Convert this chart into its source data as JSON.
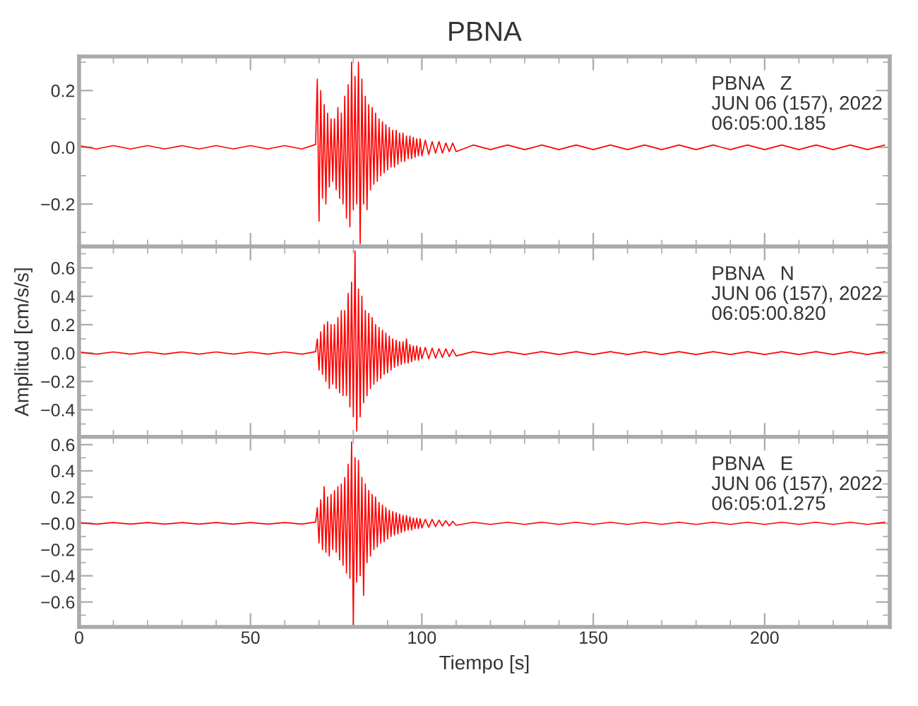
{
  "chart_data": [
    {
      "type": "line",
      "title": "PBNA",
      "annotations": [
        "PBNA   Z",
        "JUN 06 (157), 2022",
        "06:05:00.185"
      ],
      "tick_labels": "y",
      "color": "#ff0000",
      "xlim": [
        0,
        236.5
      ],
      "ylim": [
        -0.35,
        0.32
      ],
      "xticks": [
        0,
        {
          "value": 10,
          "label": null
        },
        {
          "value": 20,
          "label": null
        },
        {
          "value": 30,
          "label": null
        },
        {
          "value": 40,
          "label": null
        },
        50,
        {
          "value": 60,
          "label": null
        },
        {
          "value": 70,
          "label": null
        },
        {
          "value": 80,
          "label": null
        },
        {
          "value": 90,
          "label": null
        },
        100,
        {
          "value": 110,
          "label": null
        },
        {
          "value": 120,
          "label": null
        },
        {
          "value": 130,
          "label": null
        },
        {
          "value": 140,
          "label": null
        },
        150,
        {
          "value": 160,
          "label": null
        },
        {
          "value": 170,
          "label": null
        },
        {
          "value": 180,
          "label": null
        },
        {
          "value": 190,
          "label": null
        },
        200,
        {
          "value": 210,
          "label": null
        },
        {
          "value": 220,
          "label": null
        },
        {
          "value": 230,
          "label": null
        }
      ],
      "yticks": [
        {
          "value": -0.3,
          "label": null
        },
        {
          "value": -0.2,
          "label": "−0.2"
        },
        {
          "value": -0.1,
          "label": null
        },
        {
          "value": 0.0,
          "label": "0.0"
        },
        {
          "value": 0.1,
          "label": null
        },
        {
          "value": 0.2,
          "label": "0.2"
        },
        {
          "value": 0.3,
          "label": null
        }
      ],
      "x": [
        0,
        5,
        10,
        15,
        20,
        25,
        30,
        35,
        40,
        45,
        50,
        55,
        60,
        65,
        69,
        69.5,
        70,
        70.5,
        71,
        71.5,
        72,
        72.5,
        73,
        73.5,
        74,
        74.5,
        75,
        75.5,
        76,
        76.5,
        77,
        77.5,
        78,
        78.5,
        79,
        79.5,
        80,
        80.5,
        81,
        81.5,
        82,
        82.5,
        83,
        83.5,
        84,
        84.5,
        85,
        85.5,
        86,
        86.5,
        87,
        87.5,
        88,
        88.5,
        89,
        89.5,
        90,
        90.5,
        91,
        91.5,
        92,
        92.5,
        93,
        93.5,
        94,
        94.5,
        95,
        95.5,
        96,
        96.5,
        97,
        97.5,
        98,
        98.5,
        99,
        99.5,
        100,
        101,
        102,
        103,
        104,
        105,
        106,
        107,
        108,
        109,
        110,
        115,
        120,
        125,
        130,
        135,
        140,
        145,
        150,
        155,
        160,
        165,
        170,
        175,
        180,
        185,
        190,
        195,
        200,
        205,
        210,
        215,
        220,
        225,
        230,
        235
      ],
      "values": [
        0.006,
        -0.006,
        0.006,
        -0.006,
        0.006,
        -0.006,
        0.006,
        -0.006,
        0.006,
        -0.006,
        0.006,
        -0.006,
        0.006,
        -0.006,
        0.01,
        0.24,
        -0.26,
        0.2,
        -0.18,
        0.15,
        -0.2,
        0.12,
        -0.14,
        0.1,
        -0.12,
        0.1,
        -0.15,
        0.14,
        -0.18,
        0.12,
        -0.2,
        0.18,
        -0.25,
        0.22,
        -0.28,
        0.3,
        -0.22,
        0.25,
        -0.2,
        0.3,
        -0.34,
        0.24,
        -0.2,
        0.18,
        -0.22,
        0.15,
        -0.15,
        0.14,
        -0.13,
        0.12,
        -0.12,
        0.1,
        -0.1,
        0.09,
        -0.09,
        0.08,
        -0.08,
        0.07,
        -0.07,
        0.06,
        -0.07,
        0.06,
        -0.06,
        0.05,
        -0.05,
        0.05,
        -0.05,
        0.04,
        -0.04,
        0.04,
        -0.04,
        0.035,
        -0.035,
        0.03,
        -0.03,
        0.03,
        -0.03,
        0.025,
        -0.025,
        0.02,
        -0.02,
        0.02,
        -0.02,
        0.015,
        -0.015,
        0.015,
        -0.015,
        0.008,
        -0.008,
        0.008,
        -0.008,
        0.008,
        -0.008,
        0.008,
        -0.008,
        0.008,
        -0.008,
        0.008,
        -0.008,
        0.008,
        -0.008,
        0.008,
        -0.008,
        0.008,
        -0.008,
        0.008,
        -0.008,
        0.008,
        -0.008,
        0.008,
        -0.008,
        0.008
      ]
    },
    {
      "type": "line",
      "ylabel": "Amplitud [cm/s/s]",
      "annotations": [
        "PBNA   N",
        "JUN 06 (157), 2022",
        "06:05:00.820"
      ],
      "tick_labels": "y",
      "color": "#ff0000",
      "xlim": [
        0,
        236.5
      ],
      "ylim": [
        -0.59,
        0.75
      ],
      "xticks": [
        0,
        {
          "value": 10,
          "label": null
        },
        {
          "value": 20,
          "label": null
        },
        {
          "value": 30,
          "label": null
        },
        {
          "value": 40,
          "label": null
        },
        50,
        {
          "value": 60,
          "label": null
        },
        {
          "value": 70,
          "label": null
        },
        {
          "value": 80,
          "label": null
        },
        {
          "value": 90,
          "label": null
        },
        100,
        {
          "value": 110,
          "label": null
        },
        {
          "value": 120,
          "label": null
        },
        {
          "value": 130,
          "label": null
        },
        {
          "value": 140,
          "label": null
        },
        150,
        {
          "value": 160,
          "label": null
        },
        {
          "value": 170,
          "label": null
        },
        {
          "value": 180,
          "label": null
        },
        {
          "value": 190,
          "label": null
        },
        200,
        {
          "value": 210,
          "label": null
        },
        {
          "value": 220,
          "label": null
        },
        {
          "value": 230,
          "label": null
        }
      ],
      "yticks": [
        {
          "value": -0.5,
          "label": null
        },
        {
          "value": -0.4,
          "label": "−0.4"
        },
        {
          "value": -0.3,
          "label": null
        },
        {
          "value": -0.2,
          "label": "−0.2"
        },
        {
          "value": -0.1,
          "label": null
        },
        {
          "value": 0.0,
          "label": "0.0"
        },
        {
          "value": 0.1,
          "label": null
        },
        {
          "value": 0.2,
          "label": "0.2"
        },
        {
          "value": 0.3,
          "label": null
        },
        {
          "value": 0.4,
          "label": "0.4"
        },
        {
          "value": 0.5,
          "label": null
        },
        {
          "value": 0.6,
          "label": "0.6"
        },
        {
          "value": 0.7,
          "label": null
        }
      ],
      "x": [
        0,
        5,
        10,
        15,
        20,
        25,
        30,
        35,
        40,
        45,
        50,
        55,
        60,
        65,
        69,
        69.5,
        70,
        70.5,
        71,
        71.5,
        72,
        72.5,
        73,
        73.5,
        74,
        74.5,
        75,
        75.5,
        76,
        76.5,
        77,
        77.5,
        78,
        78.5,
        79,
        79.5,
        80,
        80.5,
        81,
        81.5,
        82,
        82.5,
        83,
        83.5,
        84,
        84.5,
        85,
        85.5,
        86,
        86.5,
        87,
        87.5,
        88,
        88.5,
        89,
        89.5,
        90,
        90.5,
        91,
        91.5,
        92,
        92.5,
        93,
        93.5,
        94,
        94.5,
        95,
        95.5,
        96,
        96.5,
        97,
        97.5,
        98,
        98.5,
        99,
        99.5,
        100,
        101,
        102,
        103,
        104,
        105,
        106,
        107,
        108,
        109,
        110,
        115,
        120,
        125,
        130,
        135,
        140,
        145,
        150,
        155,
        160,
        165,
        170,
        175,
        180,
        185,
        190,
        195,
        200,
        205,
        210,
        215,
        220,
        225,
        230,
        235
      ],
      "values": [
        0.008,
        -0.008,
        0.008,
        -0.008,
        0.008,
        -0.008,
        0.008,
        -0.008,
        0.008,
        -0.008,
        0.008,
        -0.008,
        0.008,
        -0.008,
        0.01,
        0.1,
        -0.12,
        0.15,
        -0.15,
        0.2,
        -0.2,
        0.22,
        -0.25,
        0.2,
        -0.22,
        0.2,
        -0.25,
        0.25,
        -0.28,
        0.3,
        -0.3,
        0.3,
        -0.3,
        0.42,
        -0.38,
        0.5,
        -0.45,
        0.72,
        -0.55,
        0.45,
        -0.45,
        0.4,
        -0.35,
        0.3,
        -0.3,
        0.28,
        -0.25,
        0.25,
        -0.22,
        0.2,
        -0.2,
        0.18,
        -0.18,
        0.16,
        -0.15,
        0.14,
        -0.14,
        0.12,
        -0.12,
        0.1,
        -0.1,
        0.09,
        -0.09,
        0.08,
        -0.08,
        0.08,
        -0.07,
        0.1,
        -0.07,
        0.06,
        -0.06,
        0.05,
        -0.05,
        0.05,
        -0.05,
        0.04,
        -0.04,
        0.04,
        -0.04,
        0.035,
        -0.035,
        0.03,
        -0.03,
        0.03,
        -0.025,
        0.025,
        -0.02,
        0.01,
        -0.01,
        0.01,
        -0.01,
        0.01,
        -0.01,
        0.01,
        -0.01,
        0.01,
        -0.01,
        0.01,
        -0.01,
        0.01,
        -0.01,
        0.01,
        -0.01,
        0.01,
        -0.01,
        0.01,
        -0.01,
        0.01,
        -0.01,
        0.01,
        -0.01,
        0.01
      ]
    },
    {
      "type": "line",
      "xlabel": "Tiempo [s]",
      "annotations": [
        "PBNA   E",
        "JUN 06 (157), 2022",
        "06:05:01.275"
      ],
      "color": "#ff0000",
      "xlim": [
        0,
        236.5
      ],
      "ylim": [
        -0.79,
        0.66
      ],
      "xticks": [
        0,
        {
          "value": 10,
          "label": null
        },
        {
          "value": 20,
          "label": null
        },
        {
          "value": 30,
          "label": null
        },
        {
          "value": 40,
          "label": null
        },
        50,
        {
          "value": 60,
          "label": null
        },
        {
          "value": 70,
          "label": null
        },
        {
          "value": 80,
          "label": null
        },
        {
          "value": 90,
          "label": null
        },
        100,
        {
          "value": 110,
          "label": null
        },
        {
          "value": 120,
          "label": null
        },
        {
          "value": 130,
          "label": null
        },
        {
          "value": 140,
          "label": null
        },
        150,
        {
          "value": 160,
          "label": null
        },
        {
          "value": 170,
          "label": null
        },
        {
          "value": 180,
          "label": null
        },
        {
          "value": 190,
          "label": null
        },
        200,
        {
          "value": 210,
          "label": null
        },
        {
          "value": 220,
          "label": null
        },
        {
          "value": 230,
          "label": null
        }
      ],
      "yticks": [
        {
          "value": -0.7,
          "label": null
        },
        {
          "value": -0.6,
          "label": "−0.6"
        },
        {
          "value": -0.5,
          "label": null
        },
        {
          "value": -0.4,
          "label": "−0.4"
        },
        {
          "value": -0.3,
          "label": null
        },
        {
          "value": -0.2,
          "label": "−0.2"
        },
        {
          "value": -0.1,
          "label": null
        },
        {
          "value": 0.0,
          "label": "−0.0"
        },
        {
          "value": 0.1,
          "label": null
        },
        {
          "value": 0.2,
          "label": "0.2"
        },
        {
          "value": 0.3,
          "label": null
        },
        {
          "value": 0.4,
          "label": "0.4"
        },
        {
          "value": 0.5,
          "label": null
        },
        {
          "value": 0.6,
          "label": "0.6"
        }
      ],
      "x": [
        0,
        5,
        10,
        15,
        20,
        25,
        30,
        35,
        40,
        45,
        50,
        55,
        60,
        65,
        69,
        69.5,
        70,
        70.5,
        71,
        71.5,
        72,
        72.5,
        73,
        73.5,
        74,
        74.5,
        75,
        75.5,
        76,
        76.5,
        77,
        77.5,
        78,
        78.5,
        79,
        79.5,
        80,
        80.5,
        81,
        81.5,
        82,
        82.5,
        83,
        83.5,
        84,
        84.5,
        85,
        85.5,
        86,
        86.5,
        87,
        87.5,
        88,
        88.5,
        89,
        89.5,
        90,
        90.5,
        91,
        91.5,
        92,
        92.5,
        93,
        93.5,
        94,
        94.5,
        95,
        95.5,
        96,
        96.5,
        97,
        97.5,
        98,
        98.5,
        99,
        99.5,
        100,
        101,
        102,
        103,
        104,
        105,
        106,
        107,
        108,
        109,
        110,
        115,
        120,
        125,
        130,
        135,
        140,
        145,
        150,
        155,
        160,
        165,
        170,
        175,
        180,
        185,
        190,
        195,
        200,
        205,
        210,
        215,
        220,
        225,
        230,
        235
      ],
      "values": [
        0.006,
        -0.006,
        0.006,
        -0.006,
        0.006,
        -0.006,
        0.006,
        -0.006,
        0.006,
        -0.006,
        0.006,
        -0.006,
        0.006,
        -0.006,
        0.01,
        0.12,
        -0.15,
        0.18,
        -0.2,
        0.28,
        -0.22,
        0.2,
        -0.25,
        0.22,
        -0.2,
        0.25,
        -0.22,
        0.28,
        -0.28,
        0.3,
        -0.32,
        0.35,
        -0.38,
        0.45,
        -0.42,
        0.62,
        -0.78,
        0.5,
        -0.45,
        0.48,
        -0.4,
        0.35,
        -0.55,
        0.3,
        -0.3,
        0.25,
        -0.25,
        0.22,
        -0.2,
        0.2,
        -0.18,
        0.16,
        -0.15,
        0.14,
        -0.14,
        0.12,
        -0.12,
        0.1,
        -0.1,
        0.09,
        -0.09,
        0.08,
        -0.08,
        0.07,
        -0.07,
        0.06,
        -0.06,
        0.06,
        -0.05,
        0.05,
        -0.05,
        0.04,
        -0.04,
        0.04,
        -0.04,
        0.035,
        -0.035,
        0.03,
        -0.03,
        0.03,
        -0.025,
        0.025,
        -0.02,
        0.02,
        -0.02,
        0.015,
        -0.015,
        0.008,
        -0.008,
        0.008,
        -0.008,
        0.008,
        -0.008,
        0.008,
        -0.008,
        0.008,
        -0.008,
        0.008,
        -0.008,
        0.008,
        -0.008,
        0.008,
        -0.008,
        0.008,
        -0.008,
        0.008,
        -0.008,
        0.008,
        -0.008,
        0.008,
        -0.008,
        0.008
      ]
    }
  ]
}
